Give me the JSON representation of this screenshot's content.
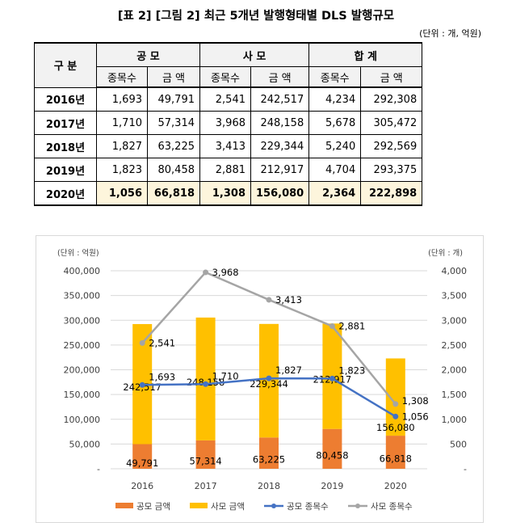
{
  "title": "[표 2] [그림 2] 최근 5개년 발행형태별 DLS 발행규모",
  "unit": "(단위 : 개, 억원)",
  "table": {
    "col_group": "구 분",
    "groups": [
      "공 모",
      "사 모",
      "합 계"
    ],
    "sub": [
      "종목수",
      "금 액",
      "종목수",
      "금 액",
      "종목수",
      "금 액"
    ],
    "rows": [
      [
        "2016년",
        "1,693",
        "49,791",
        "2,541",
        "242,517",
        "4,234",
        "292,308"
      ],
      [
        "2017년",
        "1,710",
        "57,314",
        "3,968",
        "248,158",
        "5,678",
        "305,472"
      ],
      [
        "2018년",
        "1,827",
        "63,225",
        "3,413",
        "229,344",
        "5,240",
        "292,569"
      ],
      [
        "2019년",
        "1,823",
        "80,458",
        "2,881",
        "212,917",
        "4,704",
        "293,375"
      ],
      [
        "2020년",
        "1,056",
        "66,818",
        "1,308",
        "156,080",
        "2,364",
        "222,898"
      ]
    ]
  },
  "chart_data": {
    "type": "bar",
    "stacked": true,
    "categories": [
      "2016",
      "2017",
      "2018",
      "2019",
      "2020"
    ],
    "left_unit": "(단위 : 억원)",
    "right_unit": "(단위 : 개)",
    "left_ticks": [
      "-",
      "50,000",
      "100,000",
      "150,000",
      "200,000",
      "250,000",
      "300,000",
      "350,000",
      "400,000"
    ],
    "right_ticks": [
      "-",
      "500",
      "1,000",
      "1,500",
      "2,000",
      "2,500",
      "3,000",
      "3,500",
      "4,000"
    ],
    "ylim": [
      0,
      400000
    ],
    "y2lim": [
      0,
      4000
    ],
    "grid": true,
    "legend": "bottom",
    "series": [
      {
        "name": "공모 금액",
        "type": "bar",
        "axis": "left",
        "color": "#ed7d31",
        "values": [
          49791,
          57314,
          63225,
          80458,
          66818
        ],
        "labels": [
          "49,791",
          "57,314",
          "63,225",
          "80,458",
          "66,818"
        ]
      },
      {
        "name": "사모 금액",
        "type": "bar",
        "axis": "left",
        "color": "#ffc000",
        "values": [
          242517,
          248158,
          229344,
          212917,
          156080
        ],
        "labels": [
          "242,517",
          "248,158",
          "229,344",
          "212,917",
          "156,080"
        ]
      },
      {
        "name": "공모 종목수",
        "type": "line",
        "axis": "right",
        "color": "#4472c4",
        "values": [
          1693,
          1710,
          1827,
          1823,
          1056
        ],
        "labels": [
          "1,693",
          "1,710",
          "1,827",
          "1,823",
          "1,056"
        ]
      },
      {
        "name": "사모 종목수",
        "type": "line",
        "axis": "right",
        "color": "#a5a5a5",
        "values": [
          2541,
          3968,
          3413,
          2881,
          1308
        ],
        "labels": [
          "2,541",
          "3,968",
          "3,413",
          "2,881",
          "1,308"
        ]
      }
    ]
  }
}
